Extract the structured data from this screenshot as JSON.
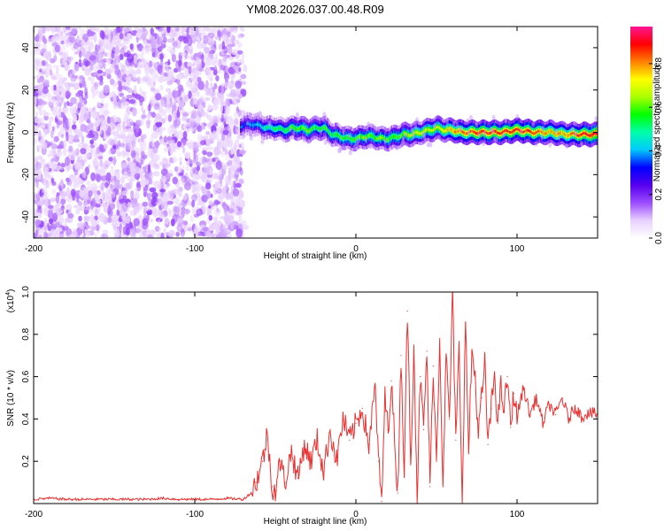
{
  "title": "YM08.2026.037.00.48.R09",
  "colors": {
    "axis": "#000000",
    "snr_line": "#e83232",
    "background": "#ffffff"
  },
  "chart_data": [
    {
      "type": "heatmap",
      "name": "spectrogram",
      "xlabel": "Height of straight line (km)",
      "ylabel": "Frequency (Hz)",
      "xlim": [
        -200,
        150
      ],
      "ylim": [
        -50,
        50
      ],
      "xticks": [
        -200,
        -100,
        0,
        100
      ],
      "xtick_labels": [
        "-200",
        "-100",
        "0",
        "100"
      ],
      "yticks": [
        -40,
        -20,
        0,
        20,
        40
      ],
      "ytick_labels": [
        "-40",
        "-20",
        "0",
        "20",
        "40"
      ],
      "colorbar": {
        "label": "Normalized spectral amplitude",
        "range": [
          0,
          0.97
        ],
        "ticks": [
          0.0,
          0.2,
          0.4,
          0.6,
          0.8
        ],
        "tick_labels": [
          "0.0",
          "0.2",
          "0.4",
          "0.6",
          "0.8"
        ],
        "colormap": [
          "#ffffff",
          "#e8d0ff",
          "#9d4cff",
          "#5500ee",
          "#0000ff",
          "#00c8ff",
          "#00ffaa",
          "#00ff00",
          "#aaff00",
          "#ffff00",
          "#ff8000",
          "#ff0000",
          "#ff1493"
        ]
      },
      "noise_region": {
        "x_range": [
          -200,
          -70
        ],
        "y_range": [
          -50,
          50
        ],
        "typical_amplitude": [
          0.02,
          0.25
        ]
      },
      "signal_ridge": {
        "x": [
          -72,
          -65,
          -60,
          -55,
          -50,
          -45,
          -40,
          -35,
          -30,
          -25,
          -20,
          -15,
          -10,
          -5,
          0,
          5,
          10,
          15,
          20,
          25,
          30,
          35,
          40,
          45,
          50,
          55,
          60,
          65,
          70,
          75,
          80,
          90,
          100,
          110,
          120,
          130,
          140,
          150
        ],
        "freq": [
          3,
          4,
          3,
          2,
          2,
          1,
          2,
          2,
          1,
          2,
          2,
          -1,
          -2,
          -3,
          -3,
          -2,
          -2,
          -3,
          -3,
          -2,
          -1,
          -1,
          0,
          1,
          2,
          1,
          1,
          0,
          0,
          0,
          0,
          0,
          1,
          0,
          0,
          -1,
          -1,
          -1
        ],
        "amplitude": [
          0.35,
          0.4,
          0.45,
          0.5,
          0.55,
          0.55,
          0.6,
          0.6,
          0.65,
          0.55,
          0.6,
          0.55,
          0.6,
          0.6,
          0.6,
          0.65,
          0.6,
          0.65,
          0.6,
          0.6,
          0.65,
          0.7,
          0.7,
          0.7,
          0.7,
          0.75,
          0.8,
          0.85,
          0.85,
          0.9,
          0.9,
          0.9,
          0.9,
          0.88,
          0.8,
          0.8,
          0.9,
          0.95
        ]
      }
    },
    {
      "type": "line",
      "name": "snr",
      "xlabel": "Height of straight line (km)",
      "ylabel": "SNR (10 * v/v)",
      "yscale_note": "(x10",
      "yscale_exp": "4",
      "yscale_close": ")",
      "xlim": [
        -200,
        150
      ],
      "ylim": [
        0,
        1.0
      ],
      "xticks": [
        -200,
        -100,
        0,
        100
      ],
      "xtick_labels": [
        "-200",
        "-100",
        "0",
        "100"
      ],
      "yticks": [
        0.2,
        0.4,
        0.6,
        0.8,
        1.0
      ],
      "ytick_labels": [
        "0.2",
        "0.4",
        "0.6",
        "0.8",
        "1.0"
      ],
      "series": [
        {
          "name": "SNR",
          "x": [
            -200,
            -190,
            -180,
            -170,
            -160,
            -150,
            -140,
            -130,
            -120,
            -110,
            -100,
            -90,
            -80,
            -70,
            -65,
            -62,
            -58,
            -55,
            -52,
            -50,
            -47,
            -44,
            -40,
            -36,
            -32,
            -28,
            -24,
            -20,
            -16,
            -12,
            -8,
            -4,
            0,
            4,
            8,
            12,
            14,
            16,
            18,
            20,
            22,
            24,
            26,
            28,
            30,
            32,
            34,
            36,
            38,
            40,
            42,
            44,
            46,
            48,
            50,
            52,
            54,
            56,
            58,
            60,
            62,
            64,
            66,
            68,
            70,
            72,
            74,
            76,
            78,
            80,
            82,
            84,
            86,
            88,
            90,
            92,
            94,
            96,
            98,
            100,
            104,
            108,
            112,
            116,
            120,
            124,
            128,
            132,
            136,
            140,
            144,
            150
          ],
          "y": [
            0.02,
            0.025,
            0.02,
            0.02,
            0.02,
            0.02,
            0.02,
            0.02,
            0.025,
            0.02,
            0.02,
            0.02,
            0.025,
            0.02,
            0.05,
            0.1,
            0.2,
            0.33,
            0.08,
            0.06,
            0.2,
            0.1,
            0.25,
            0.12,
            0.28,
            0.2,
            0.3,
            0.15,
            0.35,
            0.2,
            0.4,
            0.3,
            0.38,
            0.45,
            0.28,
            0.55,
            0.2,
            0.01,
            0.5,
            0.35,
            0.58,
            0.3,
            0.05,
            0.7,
            0.15,
            0.91,
            0.2,
            0.75,
            0.03,
            0.6,
            0.35,
            0.72,
            0.08,
            0.65,
            0.2,
            0.78,
            0.1,
            0.7,
            0.4,
            0.98,
            0.3,
            0.73,
            0.02,
            0.85,
            0.25,
            0.72,
            0.6,
            0.32,
            0.5,
            0.66,
            0.28,
            0.45,
            0.62,
            0.38,
            0.55,
            0.44,
            0.6,
            0.36,
            0.52,
            0.41,
            0.55,
            0.42,
            0.5,
            0.38,
            0.47,
            0.42,
            0.5,
            0.4,
            0.46,
            0.41,
            0.43,
            0.42
          ]
        }
      ]
    }
  ]
}
